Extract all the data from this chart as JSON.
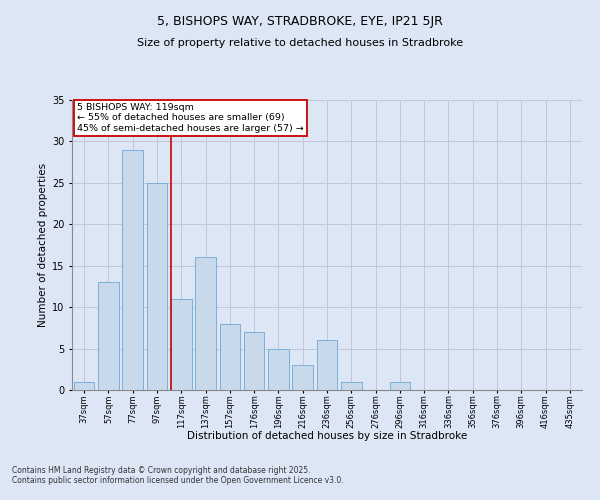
{
  "title": "5, BISHOPS WAY, STRADBROKE, EYE, IP21 5JR",
  "subtitle": "Size of property relative to detached houses in Stradbroke",
  "xlabel": "Distribution of detached houses by size in Stradbroke",
  "ylabel": "Number of detached properties",
  "categories": [
    "37sqm",
    "57sqm",
    "77sqm",
    "97sqm",
    "117sqm",
    "137sqm",
    "157sqm",
    "176sqm",
    "196sqm",
    "216sqm",
    "236sqm",
    "256sqm",
    "276sqm",
    "296sqm",
    "316sqm",
    "336sqm",
    "356sqm",
    "376sqm",
    "396sqm",
    "416sqm",
    "435sqm"
  ],
  "values": [
    1,
    13,
    29,
    25,
    11,
    16,
    8,
    7,
    5,
    3,
    6,
    1,
    0,
    1,
    0,
    0,
    0,
    0,
    0,
    0,
    0
  ],
  "bar_color": "#c9d9ec",
  "bar_edge_color": "#6fa8d6",
  "grid_color": "#c0c8d8",
  "background_color": "#dce6f5",
  "vline_color": "#cc0000",
  "vline_position": 4,
  "annotation_text": "5 BISHOPS WAY: 119sqm\n← 55% of detached houses are smaller (69)\n45% of semi-detached houses are larger (57) →",
  "annotation_box_color": "#ffffff",
  "annotation_border_color": "#cc0000",
  "ylim": [
    0,
    35
  ],
  "yticks": [
    0,
    5,
    10,
    15,
    20,
    25,
    30,
    35
  ],
  "footnote1": "Contains HM Land Registry data © Crown copyright and database right 2025.",
  "footnote2": "Contains public sector information licensed under the Open Government Licence v3.0."
}
